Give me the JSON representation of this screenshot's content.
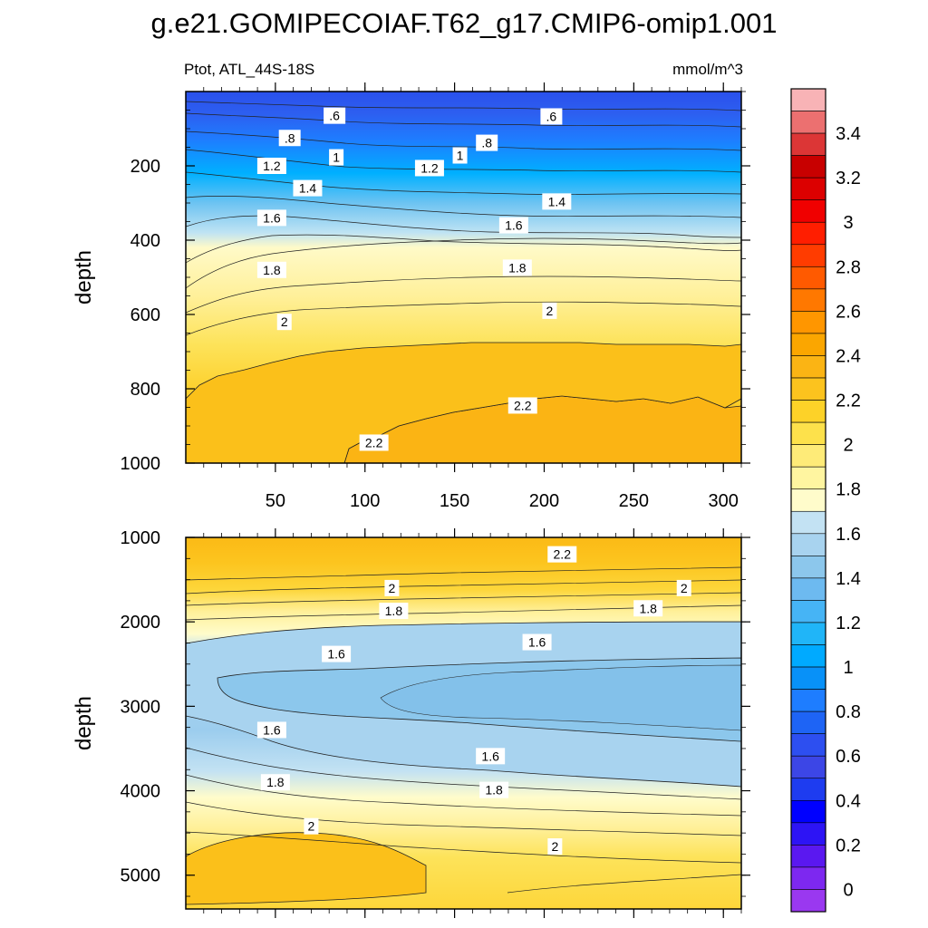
{
  "title": "g.e21.GOMIPECOIAF.T62_g17.CMIP6-omip1.001",
  "chart_data": {
    "type": "contour",
    "variable": "Ptot, ATL_44S-18S",
    "units": "mmol/m^3",
    "x": {
      "range": [
        0,
        310
      ],
      "ticks": [
        50,
        100,
        150,
        200,
        250,
        300
      ]
    },
    "panels": [
      {
        "name": "upper",
        "ylabel": "depth",
        "yrange": [
          0,
          1000
        ],
        "yticks": [
          200,
          400,
          600,
          800,
          1000
        ],
        "xticks_labeled": true,
        "contour_levels": [
          0.5,
          0.6,
          0.7,
          0.8,
          0.9,
          1.0,
          1.1,
          1.2,
          1.3,
          1.4,
          1.5,
          1.6,
          1.7,
          1.8,
          1.9,
          2.0,
          2.1,
          2.2,
          2.3
        ],
        "labels": [
          {
            "text": ".6",
            "x": 83,
            "y": 65
          },
          {
            "text": ".6",
            "x": 204,
            "y": 67
          },
          {
            "text": ".8",
            "x": 58,
            "y": 125
          },
          {
            "text": ".8",
            "x": 168,
            "y": 138
          },
          {
            "text": "1",
            "x": 84,
            "y": 177
          },
          {
            "text": "1",
            "x": 153,
            "y": 172
          },
          {
            "text": "1.2",
            "x": 48,
            "y": 200
          },
          {
            "text": "1.2",
            "x": 136,
            "y": 206
          },
          {
            "text": "1.4",
            "x": 68,
            "y": 260
          },
          {
            "text": "1.4",
            "x": 207,
            "y": 296
          },
          {
            "text": "1.6",
            "x": 48,
            "y": 340
          },
          {
            "text": "1.6",
            "x": 183,
            "y": 360
          },
          {
            "text": "1.8",
            "x": 48,
            "y": 480
          },
          {
            "text": "1.8",
            "x": 185,
            "y": 474
          },
          {
            "text": "2",
            "x": 55,
            "y": 620
          },
          {
            "text": "2",
            "x": 203,
            "y": 590
          },
          {
            "text": "2.2",
            "x": 188,
            "y": 845
          },
          {
            "text": "2.2",
            "x": 105,
            "y": 945
          }
        ]
      },
      {
        "name": "lower",
        "ylabel": "depth",
        "yrange": [
          1000,
          5400
        ],
        "yticks": [
          1000,
          2000,
          3000,
          4000,
          5000
        ],
        "xticks_labeled": false,
        "contour_levels": [
          1.5,
          1.6,
          1.7,
          1.8,
          1.9,
          2.0,
          2.1,
          2.2
        ],
        "labels": [
          {
            "text": "2.2",
            "x": 210,
            "y": 1200
          },
          {
            "text": "2",
            "x": 115,
            "y": 1600
          },
          {
            "text": "2",
            "x": 278,
            "y": 1600
          },
          {
            "text": "1.8",
            "x": 116,
            "y": 1870
          },
          {
            "text": "1.8",
            "x": 258,
            "y": 1840
          },
          {
            "text": "1.6",
            "x": 84,
            "y": 2380
          },
          {
            "text": "1.6",
            "x": 196,
            "y": 2240
          },
          {
            "text": "1.6",
            "x": 48,
            "y": 3280
          },
          {
            "text": "1.6",
            "x": 170,
            "y": 3590
          },
          {
            "text": "1.8",
            "x": 50,
            "y": 3900
          },
          {
            "text": "1.8",
            "x": 172,
            "y": 3990
          },
          {
            "text": "2",
            "x": 70,
            "y": 4420
          },
          {
            "text": "2",
            "x": 206,
            "y": 4660
          }
        ]
      }
    ],
    "colorbar": {
      "labels": [
        "3.4",
        "3.2",
        "3",
        "2.8",
        "2.6",
        "2.4",
        "2.2",
        "2",
        "1.8",
        "1.6",
        "1.4",
        "1.2",
        "1",
        "0.8",
        "0.6",
        "0.4",
        "0.2",
        "0"
      ],
      "colors_top_to_bottom": [
        "#f8b3b6",
        "#ec7070",
        "#dc3636",
        "#c80000",
        "#dc0000",
        "#f00000",
        "#ff1e00",
        "#ff3c00",
        "#ff5a00",
        "#ff7800",
        "#ff9600",
        "#fba600",
        "#fbb414",
        "#fcc31e",
        "#fdd228",
        "#fde14b",
        "#feeb78",
        "#fff5a0",
        "#fffccb",
        "#c3e2f3",
        "#a8d3ef",
        "#8cc7ec",
        "#6dbaf0",
        "#46b4f5",
        "#20b5f8",
        "#00aaff",
        "#0891f8",
        "#1e7dff",
        "#1e64f5",
        "#2d4ff0",
        "#3c46e6",
        "#1e3cf0",
        "#0000ff",
        "#2d14f5",
        "#5a18f0",
        "#7d28f0",
        "#9a38f0"
      ]
    }
  }
}
